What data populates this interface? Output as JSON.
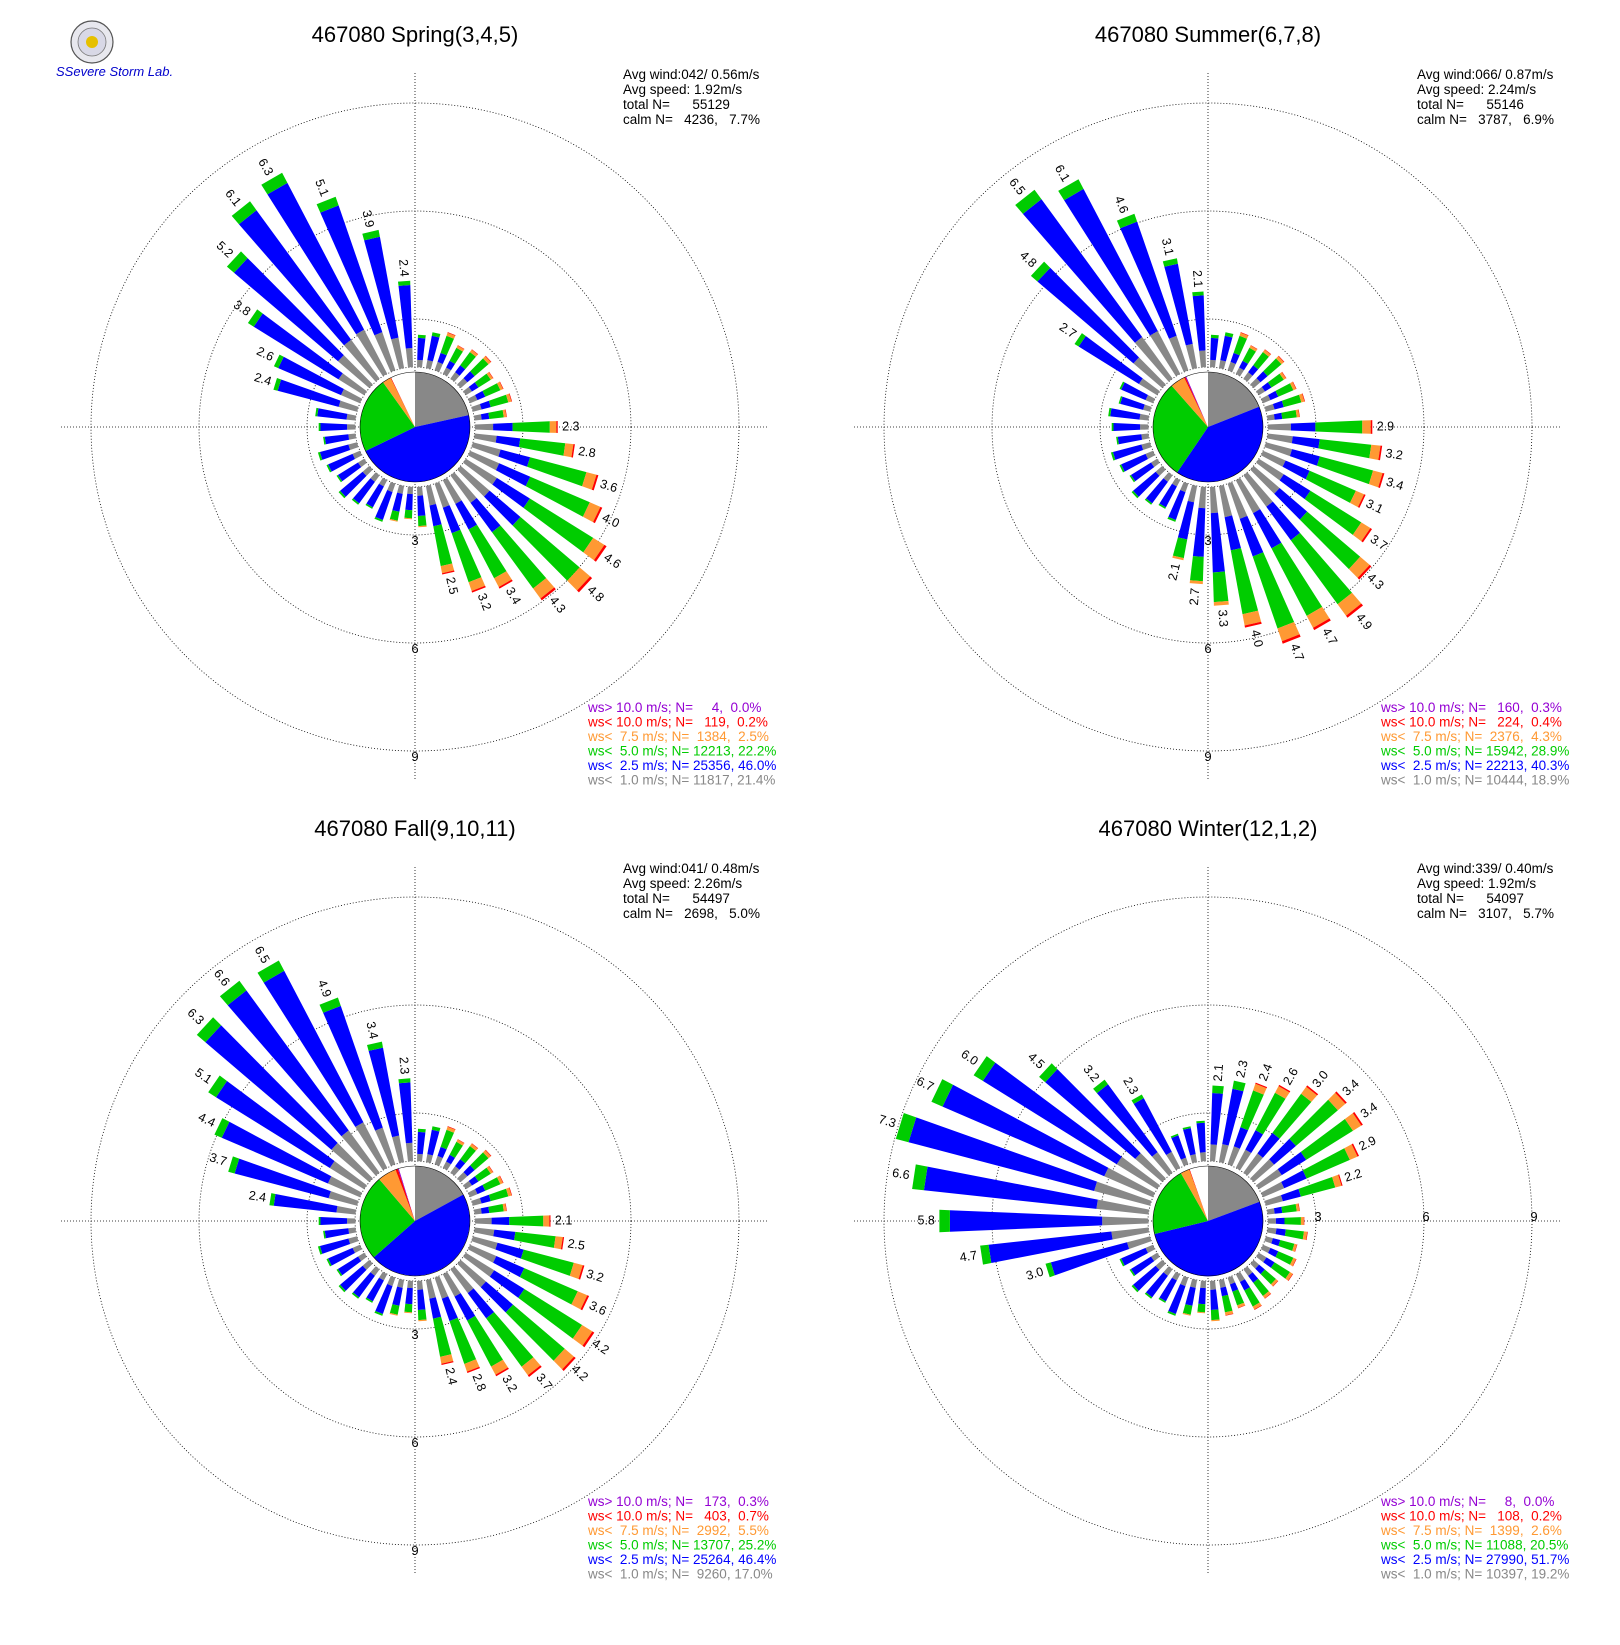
{
  "logo": {
    "text": "SSevere Storm Lab."
  },
  "colors": {
    "gt10": "#9400d3",
    "lt10": "#ff0000",
    "lt7_5": "#ff9933",
    "lt5": "#00cc00",
    "lt2_5": "#0000ff",
    "lt1": "#888888"
  },
  "chart_data": [
    {
      "type": "windrose",
      "title": "467080 Spring(3,4,5)",
      "stats": [
        "Avg wind:042/ 0.56m/s",
        "Avg speed: 1.92m/s",
        "total N=      55129",
        "calm N=   4236,   7.7%"
      ],
      "ring_labels": [
        "3",
        "6",
        "9"
      ],
      "radial_max": 9,
      "pie": [
        21.4,
        46.0,
        22.2,
        2.5,
        0.2,
        0.0
      ],
      "direction_labels": [
        "",
        "",
        "",
        "",
        "",
        "",
        "",
        "",
        "",
        "",
        "2.3",
        "2.8",
        "3.6",
        "4.0",
        "4.6",
        "4.8",
        "4.3",
        "3.4",
        "3.2",
        "2.5",
        "",
        "",
        "",
        "",
        "",
        "",
        "",
        "",
        "",
        "",
        "",
        "",
        "",
        "2.4",
        "2.6",
        "3.8",
        "5.2",
        "6.1",
        "6.3",
        "5.1",
        "3.9",
        "2.4"
      ],
      "legend": [
        "ws> 10.0 m/s; N=     4,  0.0%",
        "ws< 10.0 m/s; N=   119,  0.2%",
        "ws<  7.5 m/s; N=  1384,  2.5%",
        "ws<  5.0 m/s; N= 12213, 22.2%",
        "ws<  2.5 m/s; N= 25356, 46.0%",
        "ws<  1.0 m/s; N= 11817, 21.4%"
      ]
    },
    {
      "type": "windrose",
      "title": "467080 Summer(6,7,8)",
      "stats": [
        "Avg wind:066/ 0.87m/s",
        "Avg speed: 2.24m/s",
        "total N=      55146",
        "calm N=   3787,   6.9%"
      ],
      "ring_labels": [
        "3",
        "6",
        "9"
      ],
      "radial_max": 9,
      "pie": [
        18.9,
        40.3,
        28.9,
        4.3,
        0.4,
        0.3
      ],
      "direction_labels": [
        "",
        "",
        "",
        "",
        "",
        "",
        "",
        "",
        "",
        "",
        "2.9",
        "3.2",
        "3.4",
        "3.1",
        "3.7",
        "4.3",
        "4.9",
        "4.7",
        "4.7",
        "4.0",
        "3.3",
        "2.7",
        "2.1",
        "",
        "",
        "",
        "",
        "",
        "",
        "",
        "",
        "",
        "",
        "",
        "",
        "2.7",
        "4.8",
        "6.5",
        "6.1",
        "4.6",
        "3.1",
        "2.1"
      ],
      "legend": [
        "ws> 10.0 m/s; N=   160,  0.3%",
        "ws< 10.0 m/s; N=   224,  0.4%",
        "ws<  7.5 m/s; N=  2376,  4.3%",
        "ws<  5.0 m/s; N= 15942, 28.9%",
        "ws<  2.5 m/s; N= 22213, 40.3%",
        "ws<  1.0 m/s; N= 10444, 18.9%"
      ]
    },
    {
      "type": "windrose",
      "title": "467080 Fall(9,10,11)",
      "stats": [
        "Avg wind:041/ 0.48m/s",
        "Avg speed: 2.26m/s",
        "total N=      54497",
        "calm N=   2698,   5.0%"
      ],
      "ring_labels": [
        "3",
        "6",
        "9"
      ],
      "radial_max": 9,
      "pie": [
        17.0,
        46.4,
        25.2,
        5.5,
        0.7,
        0.3
      ],
      "direction_labels": [
        "",
        "",
        "",
        "",
        "",
        "",
        "",
        "",
        "",
        "",
        "2.1",
        "2.5",
        "3.2",
        "3.6",
        "4.2",
        "4.2",
        "3.7",
        "3.2",
        "2.8",
        "2.4",
        "",
        "",
        "",
        "",
        "",
        "",
        "",
        "",
        "",
        "",
        "",
        "",
        "2.4",
        "3.7",
        "4.4",
        "5.1",
        "6.3",
        "6.6",
        "6.5",
        "4.9",
        "3.4",
        "2.3"
      ],
      "legend": [
        "ws> 10.0 m/s; N=   173,  0.3%",
        "ws< 10.0 m/s; N=   403,  0.7%",
        "ws<  7.5 m/s; N=  2992,  5.5%",
        "ws<  5.0 m/s; N= 13707, 25.2%",
        "ws<  2.5 m/s; N= 25264, 46.4%",
        "ws<  1.0 m/s; N=  9260, 17.0%"
      ]
    },
    {
      "type": "windrose",
      "title": "467080 Winter(12,1,2)",
      "stats": [
        "Avg wind:339/ 0.40m/s",
        "Avg speed: 1.92m/s",
        "total N=      54097",
        "calm N=   3107,   5.7%"
      ],
      "ring_labels": [
        "3",
        "6",
        "9"
      ],
      "radial_max": 9,
      "pie": [
        19.2,
        51.7,
        20.5,
        2.6,
        0.2,
        0.0
      ],
      "direction_labels": [
        "2.1",
        "2.3",
        "2.4",
        "2.6",
        "3.0",
        "3.4",
        "3.4",
        "2.9",
        "2.2",
        "",
        "",
        "",
        "",
        "",
        "",
        "",
        "",
        "",
        "",
        "",
        "",
        "",
        "",
        "",
        "",
        "",
        "",
        "",
        "",
        "3.0",
        "4.7",
        "5.8",
        "6.6",
        "7.3",
        "6.7",
        "6.0",
        "4.5",
        "3.2",
        "2.3",
        "",
        "",
        ""
      ],
      "legend": [
        "ws> 10.0 m/s; N=     8,  0.0%",
        "ws< 10.0 m/s; N=   108,  0.2%",
        "ws<  7.5 m/s; N=  1399,  2.6%",
        "ws<  5.0 m/s; N= 11088, 20.5%",
        "ws<  2.5 m/s; N= 27990, 51.7%",
        "ws<  1.0 m/s; N= 10397, 19.2%"
      ]
    }
  ]
}
